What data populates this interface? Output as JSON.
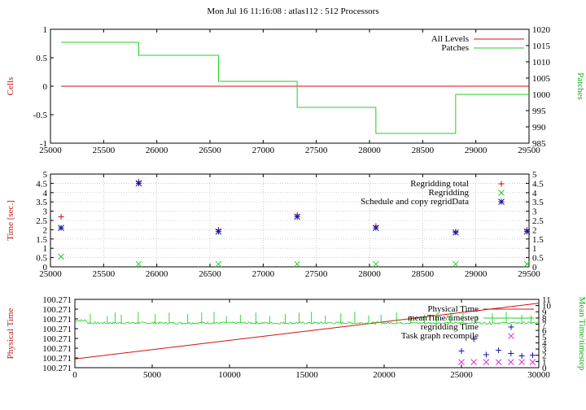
{
  "title": "Mon Jul 16 11:16:08 : atlas112 : 512 Processors",
  "colors": {
    "red": "#d01010",
    "green": "#20d020",
    "blue": "#1010a0",
    "magenta": "#e030e0"
  },
  "chart_data": [
    {
      "type": "line",
      "ylabel": "Cells",
      "y2label": "Patches",
      "xlim": [
        25000,
        29500
      ],
      "ylim": [
        -1,
        1
      ],
      "y2lim": [
        985,
        1020
      ],
      "xticks": [
        "25000",
        "25500",
        "26000",
        "26500",
        "27000",
        "27500",
        "28000",
        "28500",
        "29000",
        "29500"
      ],
      "yticks": [
        "-1",
        "-0.5",
        "0",
        "0.5",
        "1"
      ],
      "y2ticks": [
        "985",
        "990",
        "995",
        "1000",
        "1005",
        "1010",
        "1015",
        "1020"
      ],
      "legend_position": "top-right",
      "series": [
        {
          "name": "All Levels",
          "axis": "y",
          "x": [
            25100,
            29500
          ],
          "y": [
            0,
            0
          ]
        },
        {
          "name": "Patches",
          "axis": "y2",
          "step": true,
          "x": [
            25100,
            25830,
            26580,
            27320,
            28060,
            28810,
            29500
          ],
          "y": [
            1016,
            1012,
            1004,
            996,
            988,
            1000,
            1011
          ]
        }
      ]
    },
    {
      "type": "scatter",
      "ylabel": "Time [sec.]",
      "xlim": [
        25000,
        29500
      ],
      "ylim": [
        0,
        5
      ],
      "y2lim": [
        0,
        5
      ],
      "xticks": [
        "25000",
        "25500",
        "26000",
        "26500",
        "27000",
        "27500",
        "28000",
        "28500",
        "29000",
        "29500"
      ],
      "yticks": [
        "0",
        "0.5",
        "1",
        "1.5",
        "2",
        "2.5",
        "3",
        "3.5",
        "4",
        "4.5",
        "5"
      ],
      "y2ticks": [
        "0",
        "0.5",
        "1",
        "1.5",
        "2",
        "2.5",
        "3",
        "3.5",
        "4",
        "4.5",
        "5"
      ],
      "legend_position": "top-right",
      "series": [
        {
          "name": "Regridding total",
          "marker": "+",
          "x": [
            25100,
            25830,
            26580,
            27320,
            28060,
            28810,
            29480
          ],
          "y": [
            2.7,
            4.6,
            2.0,
            2.8,
            2.2,
            1.9,
            2.0
          ]
        },
        {
          "name": "Regridding",
          "marker": "x",
          "x": [
            25100,
            25830,
            26580,
            27320,
            28060,
            28810,
            29480
          ],
          "y": [
            0.55,
            0.15,
            0.15,
            0.15,
            0.15,
            0.15,
            0.15
          ]
        },
        {
          "name": "Schedule and copy regridData",
          "marker": "*",
          "x": [
            25100,
            25830,
            26580,
            27320,
            28060,
            28810,
            29480
          ],
          "y": [
            2.1,
            4.5,
            1.9,
            2.7,
            2.1,
            1.85,
            1.9
          ]
        }
      ]
    },
    {
      "type": "line",
      "ylabel": "Physical Time",
      "y2label": "Mean Time/timestep",
      "xlim": [
        0,
        30000
      ],
      "ylim": [
        0,
        7
      ],
      "y2lim": [
        0,
        11
      ],
      "xticks": [
        "0",
        "5000",
        "10000",
        "15000",
        "20000",
        "25000",
        "30000"
      ],
      "yticks": [
        "100.271",
        "100.271",
        "100.271",
        "100.271",
        "100.271",
        "100.271",
        "100.271",
        "100.271"
      ],
      "y2ticks": [
        "0",
        "1",
        "2",
        "3",
        "4",
        "5",
        "6",
        "7",
        "8",
        "9",
        "10",
        "11"
      ],
      "legend_position": "top-right",
      "series": [
        {
          "name": "Physical Time",
          "axis": "y",
          "x": [
            0,
            30000
          ],
          "y": [
            0.9,
            6.6
          ]
        },
        {
          "name": "meanTime/timestep",
          "axis": "y2",
          "noisy": true,
          "baseline": 7.2,
          "spikes_x": [
            1000,
            2100,
            2600,
            3000,
            4100,
            5200,
            6100,
            7300,
            8200,
            9000,
            9800,
            10700,
            11700,
            12600,
            13600,
            14500,
            15300,
            16200,
            17200,
            18100,
            19000,
            19800,
            20800,
            21700,
            22600,
            23400,
            24300,
            25100,
            26000,
            27000,
            27900,
            28900,
            29500
          ],
          "x": [
            0,
            30000
          ],
          "y": [
            7.5,
            7.2
          ]
        },
        {
          "name": "regridding Time",
          "marker": "+",
          "axis": "y2",
          "x": [
            25000,
            25800,
            26600,
            27400,
            28200,
            28900,
            29600
          ],
          "y": [
            2.7,
            4.6,
            2.1,
            2.8,
            2.3,
            1.9,
            2.0
          ]
        },
        {
          "name": "Task graph recompile",
          "marker": "x",
          "axis": "y2",
          "x": [
            25000,
            25800,
            26600,
            27400,
            28200,
            28900,
            29600
          ],
          "y": [
            0.9,
            0.9,
            0.9,
            0.9,
            0.9,
            0.9,
            0.9
          ]
        }
      ]
    }
  ]
}
